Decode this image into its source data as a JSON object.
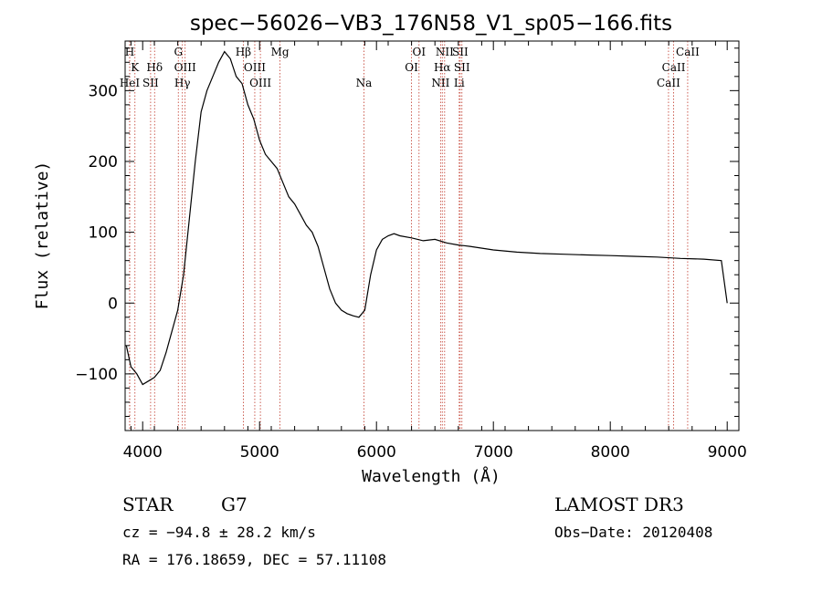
{
  "chart_data": {
    "type": "line",
    "title": "spec−56026−VB3_176N58_V1_sp05−166.fits",
    "xlabel": "Wavelength (Å)",
    "ylabel": "Flux (relative)",
    "xlim": [
      3850,
      9100
    ],
    "ylim": [
      -180,
      370
    ],
    "x_ticks": [
      4000,
      5000,
      6000,
      7000,
      8000,
      9000
    ],
    "y_ticks": [
      -100,
      0,
      100,
      200,
      300
    ],
    "y_tick_labels": [
      "−100",
      "0",
      "100",
      "200",
      "300"
    ],
    "grid": false,
    "series_color": "#000000",
    "line_color": "#c0392b",
    "spectrum": {
      "x": [
        3860,
        3900,
        3950,
        4000,
        4050,
        4100,
        4150,
        4200,
        4250,
        4300,
        4350,
        4400,
        4450,
        4500,
        4550,
        4600,
        4650,
        4700,
        4750,
        4800,
        4850,
        4900,
        4950,
        5000,
        5050,
        5100,
        5150,
        5200,
        5250,
        5300,
        5350,
        5400,
        5450,
        5500,
        5550,
        5600,
        5650,
        5700,
        5750,
        5800,
        5850,
        5900,
        5950,
        6000,
        6050,
        6100,
        6150,
        6200,
        6300,
        6400,
        6500,
        6600,
        6700,
        6800,
        7000,
        7200,
        7400,
        7600,
        7800,
        8000,
        8200,
        8400,
        8600,
        8800,
        8950,
        9000
      ],
      "y": [
        -60,
        -90,
        -100,
        -115,
        -110,
        -105,
        -95,
        -70,
        -40,
        -10,
        40,
        120,
        200,
        270,
        300,
        320,
        340,
        355,
        345,
        320,
        310,
        280,
        260,
        230,
        210,
        200,
        190,
        170,
        150,
        140,
        125,
        110,
        100,
        80,
        50,
        20,
        0,
        -10,
        -15,
        -18,
        -20,
        -10,
        40,
        75,
        90,
        95,
        98,
        95,
        92,
        88,
        90,
        85,
        82,
        80,
        75,
        72,
        70,
        69,
        68,
        67,
        66,
        65,
        63,
        62,
        60,
        0
      ]
    },
    "emission_lines": [
      {
        "label": "H",
        "x": 3889,
        "row": 0
      },
      {
        "label": "K",
        "x": 3934,
        "row": 1
      },
      {
        "label": "Hδ",
        "x": 4102,
        "row": 1
      },
      {
        "label": "HeI",
        "x": 3889,
        "row": 2
      },
      {
        "label": "SII",
        "x": 4068,
        "row": 2
      },
      {
        "label": "G",
        "x": 4305,
        "row": 0
      },
      {
        "label": "OIII",
        "x": 4363,
        "row": 1
      },
      {
        "label": "Hγ",
        "x": 4340,
        "row": 2
      },
      {
        "label": "Hβ",
        "x": 4861,
        "row": 0
      },
      {
        "label": "OIII",
        "x": 4959,
        "row": 1
      },
      {
        "label": "OIII",
        "x": 5007,
        "row": 2
      },
      {
        "label": "Mg",
        "x": 5175,
        "row": 0
      },
      {
        "label": "Na",
        "x": 5893,
        "row": 2
      },
      {
        "label": "OI",
        "x": 6364,
        "row": 0
      },
      {
        "label": "OI",
        "x": 6300,
        "row": 1
      },
      {
        "label": "NII",
        "x": 6583,
        "row": 0
      },
      {
        "label": "SII",
        "x": 6716,
        "row": 0
      },
      {
        "label": "Hα",
        "x": 6563,
        "row": 1
      },
      {
        "label": "SII",
        "x": 6731,
        "row": 1
      },
      {
        "label": "NII",
        "x": 6548,
        "row": 2
      },
      {
        "label": "Li",
        "x": 6708,
        "row": 2
      },
      {
        "label": "CaII",
        "x": 8662,
        "row": 0
      },
      {
        "label": "CaII",
        "x": 8542,
        "row": 1
      },
      {
        "label": "CaII",
        "x": 8498,
        "row": 2
      }
    ]
  },
  "info": {
    "class_label": "STAR",
    "subclass": "G7",
    "survey": "LAMOST DR3",
    "cz": "cz = −94.8 ± 28.2 km/s",
    "obs_date": "Obs−Date: 20120408",
    "coords": "RA = 176.18659, DEC =  57.11108"
  }
}
